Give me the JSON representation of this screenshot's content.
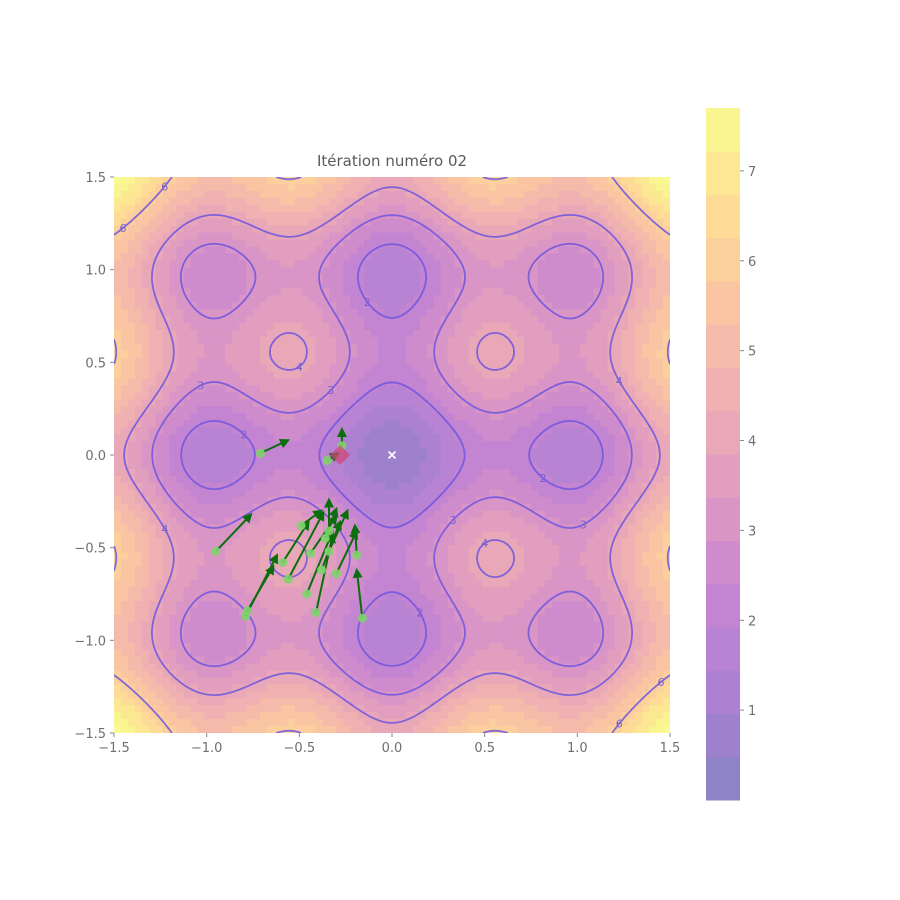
{
  "chart_data": {
    "type": "heatmap",
    "title": "Itération numéro 02",
    "xlabel": "",
    "ylabel": "",
    "xlim": [
      -1.5,
      1.5
    ],
    "ylim": [
      -1.5,
      1.5
    ],
    "x_ticks": [
      "−1.5",
      "−1.0",
      "−0.5",
      "0.0",
      "0.5",
      "1.0",
      "1.5"
    ],
    "y_ticks": [
      "−1.5",
      "−1.0",
      "−0.5",
      "0.0",
      "0.5",
      "1.0",
      "1.5"
    ],
    "grid": false,
    "colormap": "plasma (alpha 0.5)",
    "colorbar": {
      "ticks": [
        "1",
        "2",
        "3",
        "4",
        "5",
        "6",
        "7"
      ],
      "range": [
        0,
        7.7
      ]
    },
    "contour_levels": [
      2,
      3,
      4,
      6,
      8
    ],
    "contour_color": "#6f55e0",
    "global_minimum": {
      "x": 0.0,
      "y": 0.0,
      "marker": "x",
      "color": "#ffffff"
    },
    "best_point": {
      "x": -0.28,
      "y": 0.0,
      "marker": "diamond",
      "color": "#d0457a"
    },
    "particle_color": "#7ed36a",
    "arrow_color": "#0a6e0a",
    "particles": [
      {
        "x": -0.71,
        "y": 0.01,
        "dx": 0.15,
        "dy": 0.07
      },
      {
        "x": -0.35,
        "y": -0.03,
        "dx": 0.06,
        "dy": 0.04
      },
      {
        "x": -0.27,
        "y": 0.05,
        "dx": 0.0,
        "dy": 0.09
      },
      {
        "x": -0.95,
        "y": -0.52,
        "dx": 0.19,
        "dy": 0.2
      },
      {
        "x": -0.79,
        "y": -0.87,
        "dx": 0.17,
        "dy": 0.33
      },
      {
        "x": -0.78,
        "y": -0.84,
        "dx": 0.14,
        "dy": 0.24
      },
      {
        "x": -0.59,
        "y": -0.58,
        "dx": 0.14,
        "dy": 0.22
      },
      {
        "x": -0.56,
        "y": -0.67,
        "dx": 0.19,
        "dy": 0.36
      },
      {
        "x": -0.46,
        "y": -0.75,
        "dx": 0.14,
        "dy": 0.34
      },
      {
        "x": -0.41,
        "y": -0.85,
        "dx": 0.09,
        "dy": 0.42
      },
      {
        "x": -0.38,
        "y": -0.62,
        "dx": 0.1,
        "dy": 0.26
      },
      {
        "x": -0.34,
        "y": -0.41,
        "dx": 0.0,
        "dy": 0.17
      },
      {
        "x": -0.3,
        "y": -0.64,
        "dx": 0.11,
        "dy": 0.23
      },
      {
        "x": -0.34,
        "y": -0.52,
        "dx": 0.1,
        "dy": 0.22
      },
      {
        "x": -0.49,
        "y": -0.38,
        "dx": 0.11,
        "dy": 0.08
      },
      {
        "x": -0.44,
        "y": -0.53,
        "dx": 0.14,
        "dy": 0.2
      },
      {
        "x": -0.19,
        "y": -0.54,
        "dx": -0.01,
        "dy": 0.16
      },
      {
        "x": -0.16,
        "y": -0.88,
        "dx": -0.03,
        "dy": 0.26
      },
      {
        "x": -0.36,
        "y": -0.45,
        "dx": 0.06,
        "dy": 0.16
      }
    ]
  }
}
